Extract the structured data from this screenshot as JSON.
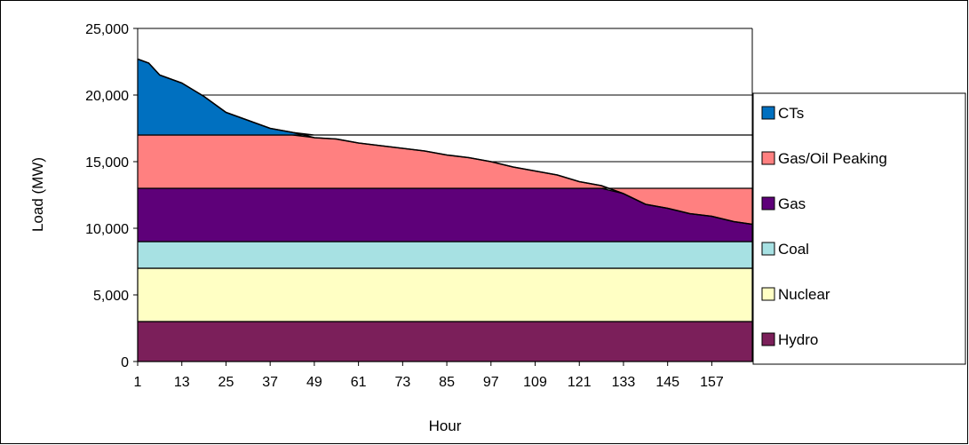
{
  "chart_data": {
    "type": "area",
    "stacked": true,
    "title": "",
    "xlabel": "Hour",
    "ylabel": "Load (MW)",
    "xlim": [
      1,
      168
    ],
    "ylim": [
      0,
      25000
    ],
    "x_ticks": [
      1,
      13,
      25,
      37,
      49,
      61,
      73,
      85,
      97,
      109,
      121,
      133,
      145,
      157
    ],
    "x_tick_labels": [
      "1",
      "13",
      "25",
      "37",
      "49",
      "61",
      "73",
      "85",
      "97",
      "109",
      "121",
      "133",
      "145",
      "157"
    ],
    "y_ticks": [
      0,
      5000,
      10000,
      15000,
      20000,
      25000
    ],
    "y_tick_labels": [
      "0",
      "5,000",
      "10,000",
      "15,000",
      "20,000",
      "25,000"
    ],
    "grid": "horizontal",
    "legend_position": "right",
    "load_duration_curve": {
      "x": [
        1,
        4,
        7,
        13,
        16,
        19,
        25,
        28,
        31,
        37,
        43,
        49,
        55,
        61,
        67,
        73,
        79,
        85,
        91,
        97,
        103,
        109,
        115,
        121,
        127,
        133,
        139,
        145,
        151,
        157,
        163,
        168
      ],
      "y": [
        22700,
        22400,
        21500,
        20900,
        20400,
        19900,
        18700,
        18400,
        18100,
        17500,
        17200,
        16800,
        16700,
        16400,
        16200,
        16000,
        15800,
        15500,
        15300,
        15000,
        14600,
        14300,
        14000,
        13500,
        13200,
        12600,
        11800,
        11500,
        11100,
        10900,
        10500,
        10300
      ]
    },
    "series": [
      {
        "name": "Hydro",
        "band": [
          0,
          3000
        ],
        "color": "#7B1F5A"
      },
      {
        "name": "Nuclear",
        "band": [
          3000,
          7000
        ],
        "color": "#FFFFC4"
      },
      {
        "name": "Coal",
        "band": [
          7000,
          9000
        ],
        "color": "#A7E1E3"
      },
      {
        "name": "Gas",
        "band": [
          9000,
          13000
        ],
        "color": "#5E0079"
      },
      {
        "name": "Gas/Oil Peaking",
        "band": [
          13000,
          17000
        ],
        "color": "#FF8080"
      },
      {
        "name": "CTs",
        "band": [
          17000,
          null
        ],
        "color": "#0070C0"
      }
    ],
    "legend_order": [
      "CTs",
      "Gas/Oil Peaking",
      "Gas",
      "Coal",
      "Nuclear",
      "Hydro"
    ]
  }
}
